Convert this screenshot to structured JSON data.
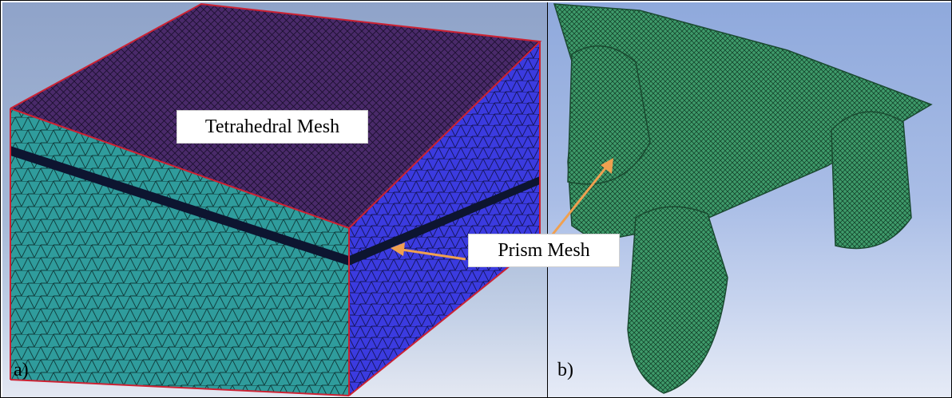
{
  "labels": {
    "tetrahedral": "Tetrahedral Mesh",
    "prism": "Prism Mesh",
    "panel_a": "a)",
    "panel_b": "b)"
  },
  "colors": {
    "top_face": "#4a2a6a",
    "front_face": "#2f9c9c",
    "right_face": "#3b3be0",
    "edge": "#cc2233",
    "part_green": "#3e9a6a",
    "arrow": "#f0a050"
  }
}
